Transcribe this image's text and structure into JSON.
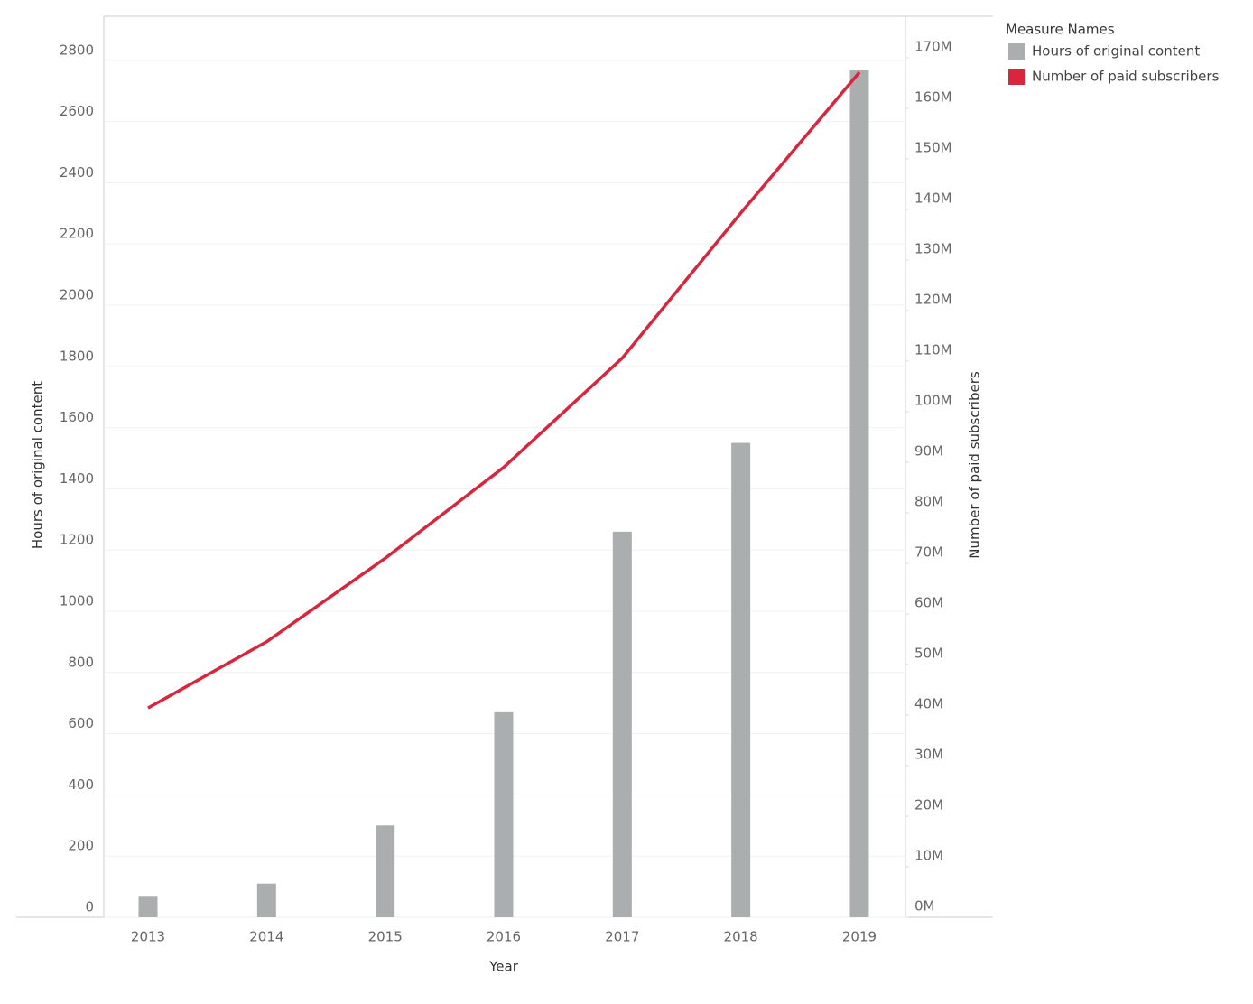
{
  "chart_data": {
    "type": "bar-line",
    "x_label": "Year",
    "y_label": "Hours of original content",
    "y2_label": "Number of paid subscribers",
    "legend_title": "Measure Names",
    "legend": "right",
    "grid": true,
    "categories": [
      "2013",
      "2014",
      "2015",
      "2016",
      "2017",
      "2018",
      "2019"
    ],
    "series": [
      {
        "name": "Hours of original content",
        "type": "bar",
        "color": "#abaeae",
        "values": [
          70,
          110,
          300,
          670,
          1260,
          1550,
          2770
        ]
      },
      {
        "name": "Number of paid subscribers",
        "type": "line",
        "axis": "y2",
        "color": "#d7263d",
        "values": [
          41400000,
          54500000,
          71000000,
          89000000,
          110600000,
          139300000,
          167100000
        ]
      }
    ],
    "ylim": [
      0,
      2944
    ],
    "yticks": [
      0,
      200,
      400,
      600,
      800,
      1000,
      1200,
      1400,
      1600,
      1800,
      2000,
      2200,
      2400,
      2600,
      2800
    ],
    "y2lim": [
      0,
      178200000
    ],
    "y2ticks": [
      {
        "value": 0,
        "label": "0M"
      },
      {
        "value": 10000000,
        "label": "10M"
      },
      {
        "value": 20000000,
        "label": "20M"
      },
      {
        "value": 30000000,
        "label": "30M"
      },
      {
        "value": 40000000,
        "label": "40M"
      },
      {
        "value": 50000000,
        "label": "50M"
      },
      {
        "value": 60000000,
        "label": "60M"
      },
      {
        "value": 70000000,
        "label": "70M"
      },
      {
        "value": 80000000,
        "label": "80M"
      },
      {
        "value": 90000000,
        "label": "90M"
      },
      {
        "value": 100000000,
        "label": "100M"
      },
      {
        "value": 110000000,
        "label": "110M"
      },
      {
        "value": 120000000,
        "label": "120M"
      },
      {
        "value": 130000000,
        "label": "130M"
      },
      {
        "value": 140000000,
        "label": "140M"
      },
      {
        "value": 150000000,
        "label": "150M"
      },
      {
        "value": 160000000,
        "label": "160M"
      },
      {
        "value": 170000000,
        "label": "170M"
      }
    ]
  }
}
